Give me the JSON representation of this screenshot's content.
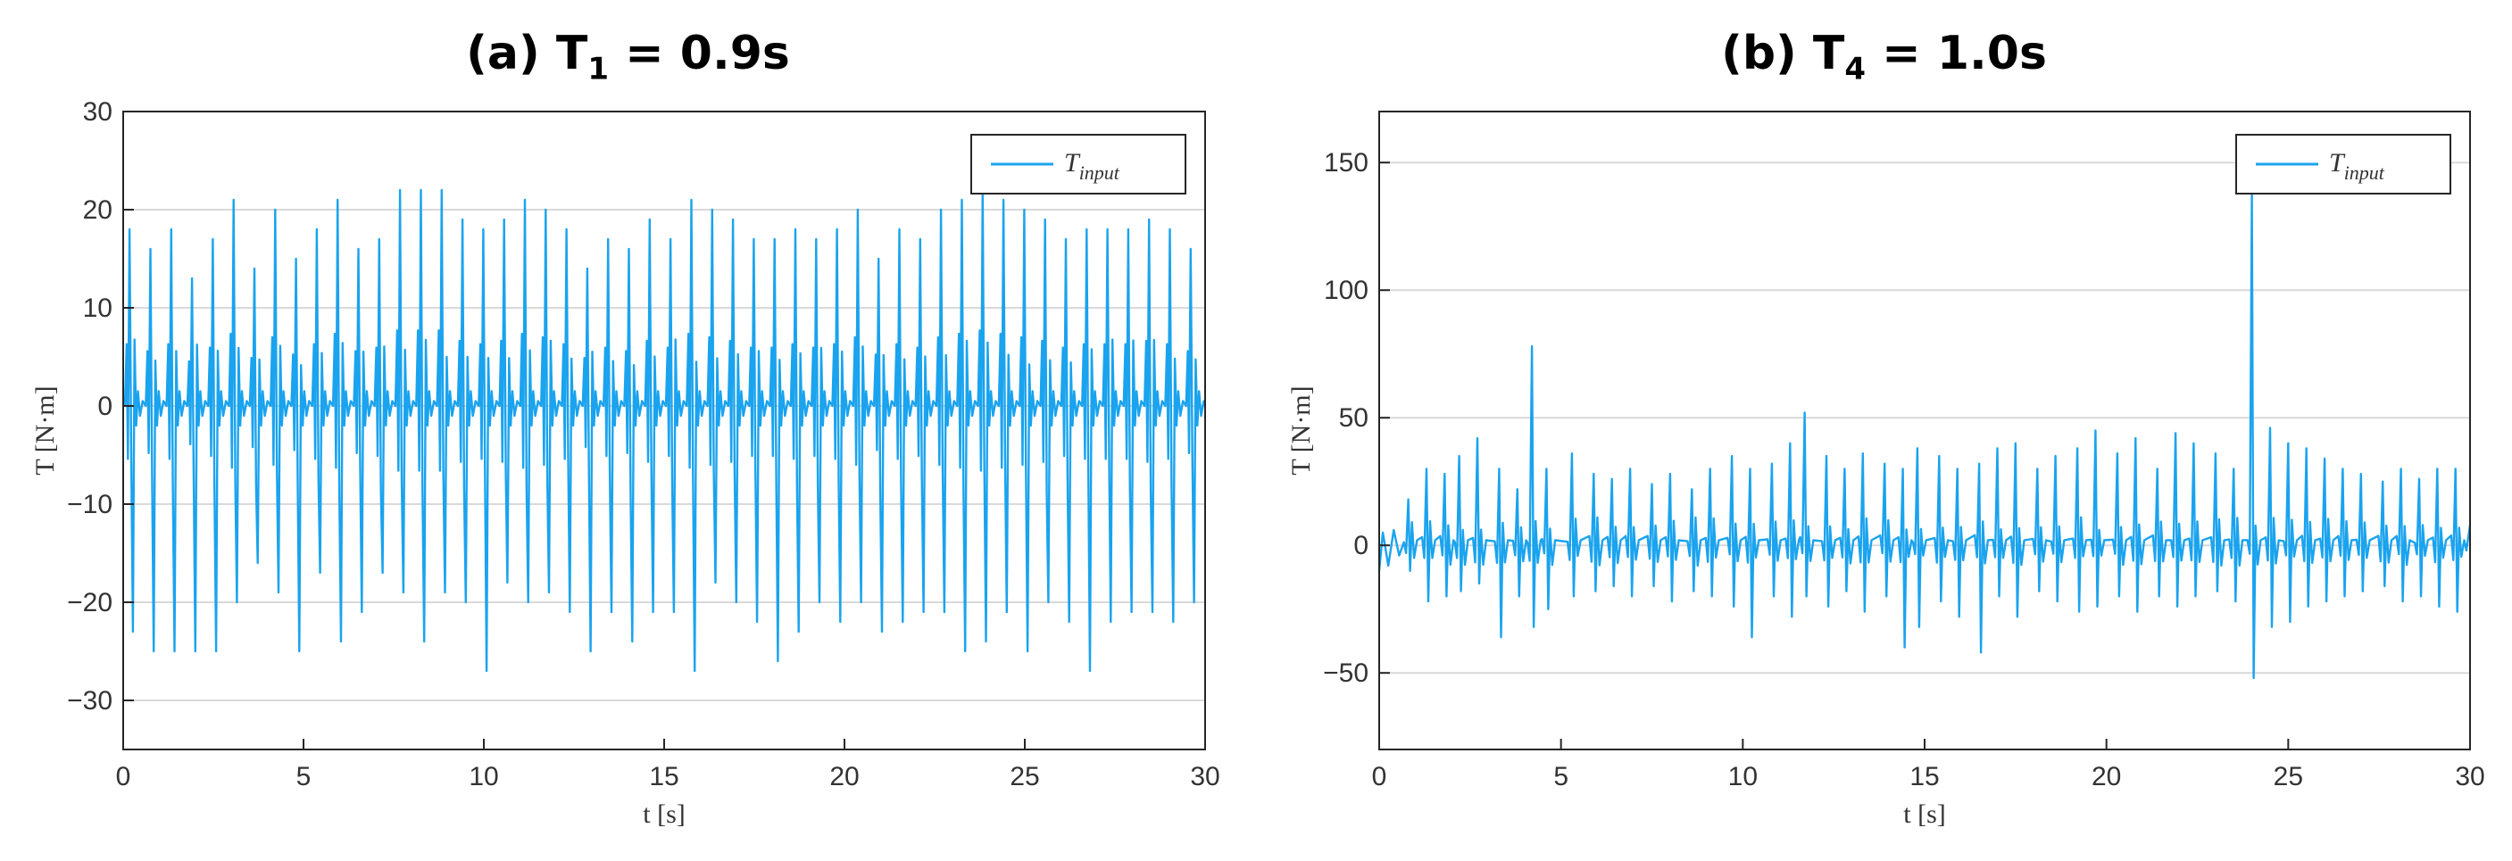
{
  "chart_data": [
    {
      "type": "line",
      "panel_title": "(a) T",
      "panel_title_sub": "1",
      "panel_title_value": " = 0.9s",
      "xlabel": "t [s]",
      "ylabel": "T [N·m]",
      "xlim": [
        0,
        30
      ],
      "ylim": [
        -35,
        30
      ],
      "xticks": [
        0,
        5,
        10,
        15,
        20,
        25,
        30
      ],
      "yticks": [
        -30,
        -20,
        -10,
        0,
        10,
        20,
        30
      ],
      "grid": true,
      "legend": {
        "label": "T",
        "sub": "input",
        "position": "top-right"
      },
      "series_color": "#1aa3ee",
      "series": [
        {
          "signal": "periodic torque impulses",
          "period_s": 0.9,
          "pos_peaks": [
            18,
            16,
            18,
            13,
            17,
            21,
            14,
            20,
            15,
            18,
            21,
            16,
            17,
            22,
            22,
            22,
            19,
            18,
            19,
            21,
            20,
            18,
            14,
            17,
            16,
            19,
            17,
            21,
            20,
            19,
            17,
            17,
            18,
            17,
            18,
            20,
            15,
            18,
            17,
            20,
            21,
            22,
            21,
            20,
            19,
            17,
            18,
            18,
            18,
            19,
            18,
            16
          ],
          "neg_peaks": [
            -23,
            -25,
            -25,
            -25,
            -25,
            -20,
            -16,
            -19,
            -25,
            -17,
            -24,
            -21,
            -17,
            -19,
            -24,
            -19,
            -20,
            -27,
            -18,
            -20,
            -19,
            -21,
            -25,
            -21,
            -24,
            -21,
            -21,
            -27,
            -18,
            -20,
            -22,
            -26,
            -23,
            -20,
            -22,
            -20,
            -23,
            -22,
            -21,
            -21,
            -25,
            -24,
            -21,
            -25,
            -20,
            -22,
            -27,
            -22,
            -21,
            -21,
            -22,
            -20
          ]
        }
      ]
    },
    {
      "type": "line",
      "panel_title": "(b) T",
      "panel_title_sub": "4",
      "panel_title_value": " = 1.0s",
      "xlabel": "t [s]",
      "ylabel": "T [N·m]",
      "xlim": [
        0,
        30
      ],
      "ylim": [
        -80,
        170
      ],
      "xticks": [
        0,
        5,
        10,
        15,
        20,
        25,
        30
      ],
      "yticks": [
        -50,
        0,
        50,
        100,
        150
      ],
      "grid": true,
      "legend": {
        "label": "T",
        "sub": "input",
        "position": "top-right"
      },
      "series_color": "#1aa3ee",
      "series": [
        {
          "signal": "irregular torque impulses",
          "spikes": [
            [
              0.8,
              18,
              -10
            ],
            [
              1.3,
              30,
              -22
            ],
            [
              1.8,
              28,
              -20
            ],
            [
              2.2,
              35,
              -18
            ],
            [
              2.7,
              42,
              -15
            ],
            [
              3.3,
              30,
              -36
            ],
            [
              3.8,
              22,
              -20
            ],
            [
              4.2,
              78,
              -32
            ],
            [
              4.6,
              30,
              -25
            ],
            [
              5.3,
              36,
              -20
            ],
            [
              5.9,
              28,
              -18
            ],
            [
              6.4,
              26,
              -16
            ],
            [
              6.9,
              30,
              -20
            ],
            [
              7.5,
              24,
              -16
            ],
            [
              8.0,
              28,
              -22
            ],
            [
              8.6,
              22,
              -18
            ],
            [
              9.1,
              30,
              -20
            ],
            [
              9.7,
              35,
              -24
            ],
            [
              10.2,
              30,
              -36
            ],
            [
              10.8,
              32,
              -20
            ],
            [
              11.3,
              40,
              -28
            ],
            [
              11.7,
              52,
              -20
            ],
            [
              12.3,
              35,
              -24
            ],
            [
              12.8,
              30,
              -18
            ],
            [
              13.3,
              36,
              -26
            ],
            [
              13.9,
              32,
              -20
            ],
            [
              14.4,
              30,
              -40
            ],
            [
              14.8,
              38,
              -32
            ],
            [
              15.4,
              35,
              -22
            ],
            [
              15.9,
              30,
              -28
            ],
            [
              16.5,
              32,
              -42
            ],
            [
              17.0,
              38,
              -20
            ],
            [
              17.5,
              40,
              -28
            ],
            [
              18.1,
              30,
              -18
            ],
            [
              18.6,
              35,
              -22
            ],
            [
              19.2,
              38,
              -26
            ],
            [
              19.7,
              45,
              -24
            ],
            [
              20.3,
              36,
              -20
            ],
            [
              20.8,
              42,
              -26
            ],
            [
              21.4,
              30,
              -20
            ],
            [
              21.9,
              44,
              -24
            ],
            [
              22.4,
              40,
              -20
            ],
            [
              23.0,
              36,
              -18
            ],
            [
              23.5,
              30,
              -22
            ],
            [
              24.0,
              138,
              -52
            ],
            [
              24.5,
              46,
              -32
            ],
            [
              25.0,
              40,
              -30
            ],
            [
              25.5,
              38,
              -24
            ],
            [
              26.0,
              34,
              -22
            ],
            [
              26.5,
              30,
              -20
            ],
            [
              27.0,
              28,
              -18
            ],
            [
              27.6,
              25,
              -16
            ],
            [
              28.1,
              30,
              -22
            ],
            [
              28.6,
              26,
              -20
            ],
            [
              29.1,
              30,
              -24
            ],
            [
              29.6,
              30,
              -26
            ]
          ]
        }
      ]
    }
  ]
}
